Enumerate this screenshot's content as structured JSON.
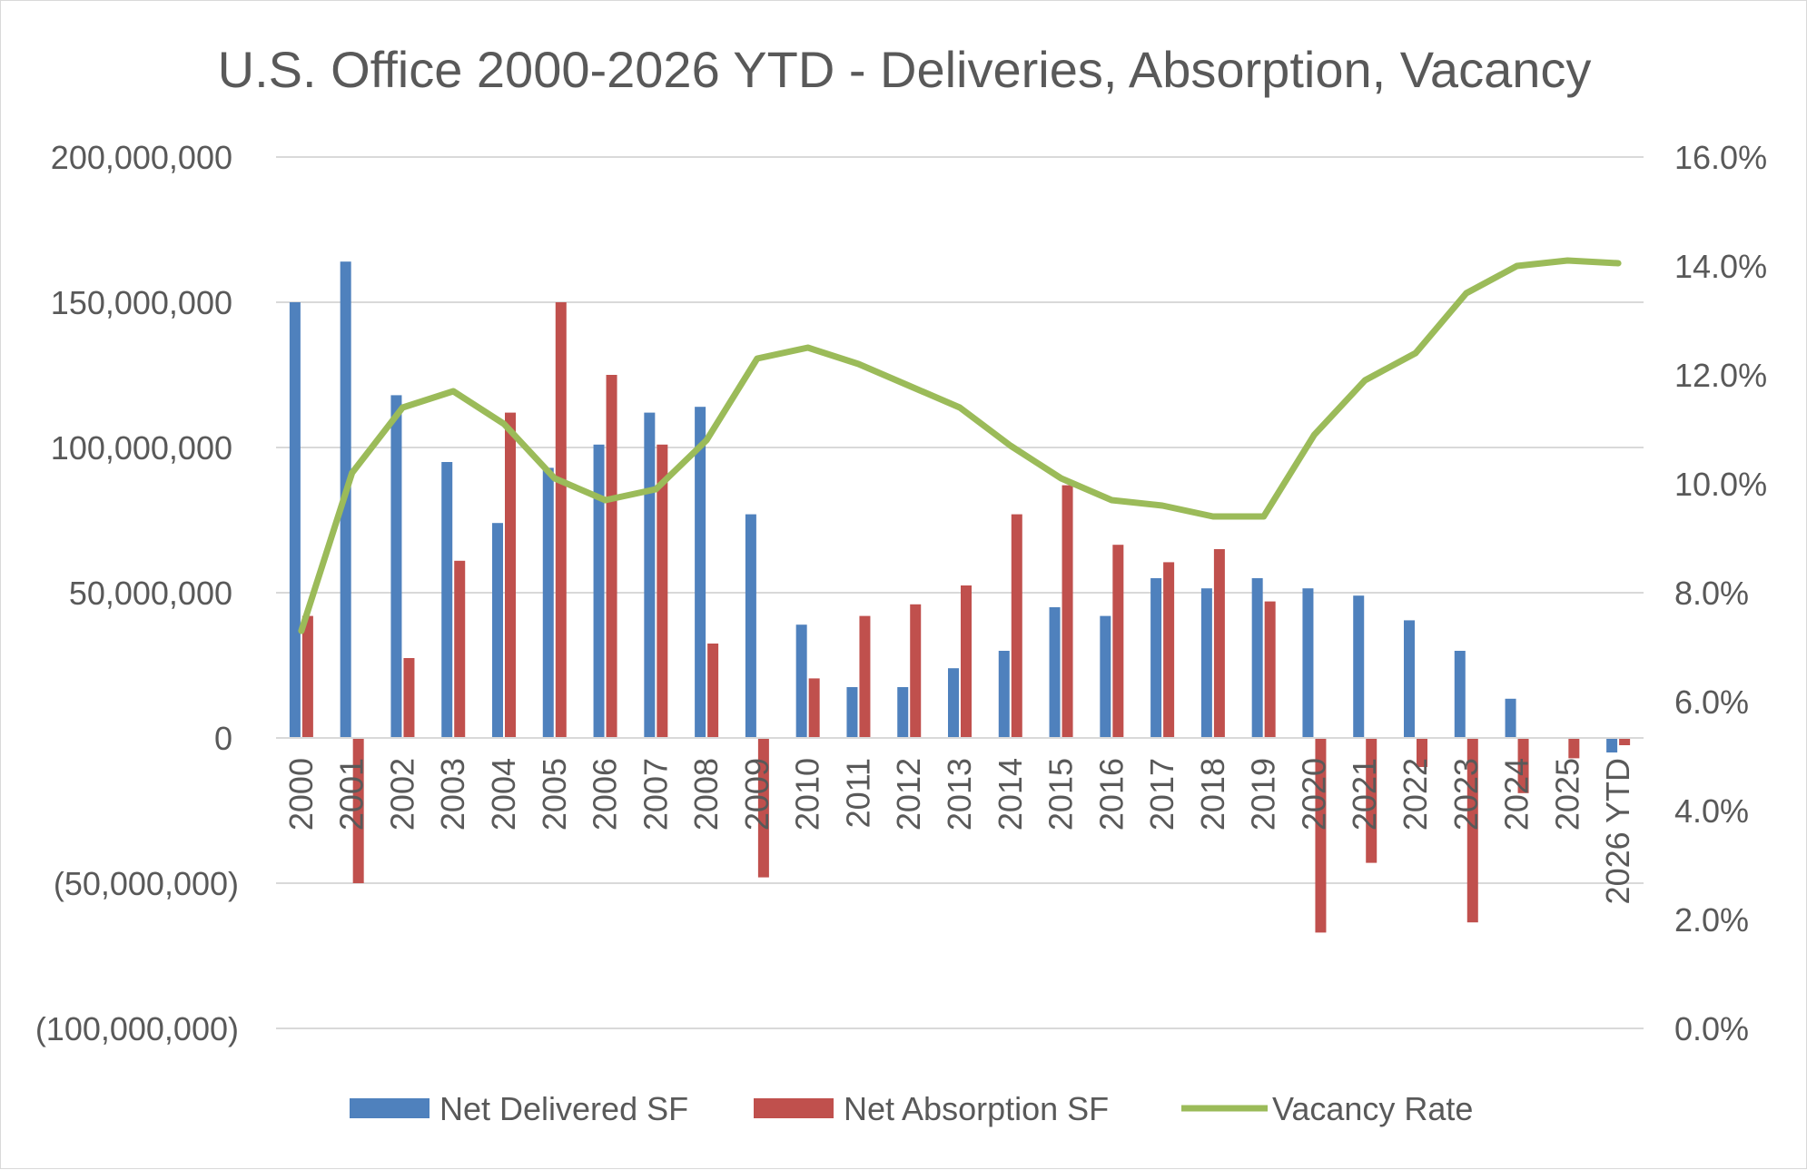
{
  "chart_data": {
    "type": "bar",
    "title": "U.S. Office 2000-2026 YTD - Deliveries, Absorption, Vacancy",
    "categories": [
      "2000",
      "2001",
      "2002",
      "2003",
      "2004",
      "2005",
      "2006",
      "2007",
      "2008",
      "2009",
      "2010",
      "2011",
      "2012",
      "2013",
      "2014",
      "2015",
      "2016",
      "2017",
      "2018",
      "2019",
      "2020",
      "2021",
      "2022",
      "2023",
      "2024",
      "2025",
      "2026 YTD"
    ],
    "series": [
      {
        "name": "Net Delivered SF",
        "type": "bar",
        "axis": "left",
        "color": "#4F81BD",
        "values": [
          150000000,
          164000000,
          118000000,
          95000000,
          74000000,
          93000000,
          101000000,
          112000000,
          114000000,
          77000000,
          39000000,
          17500000,
          17500000,
          24000000,
          30000000,
          45000000,
          42000000,
          55000000,
          51500000,
          55000000,
          51500000,
          49000000,
          40500000,
          30000000,
          13500000,
          0,
          -5000000
        ]
      },
      {
        "name": "Net Absorption SF",
        "type": "bar",
        "axis": "left",
        "color": "#C0504D",
        "values": [
          42000000,
          -50000000,
          27500000,
          61000000,
          112000000,
          150000000,
          125000000,
          101000000,
          32500000,
          -48000000,
          20500000,
          42000000,
          46000000,
          52500000,
          77000000,
          87000000,
          66500000,
          60500000,
          65000000,
          47000000,
          -67000000,
          -43000000,
          -10000000,
          -63500000,
          -19000000,
          -7000000,
          -2500000
        ]
      },
      {
        "name": "Vacancy Rate",
        "type": "line",
        "axis": "right",
        "color": "#9BBB59",
        "values": [
          7.3,
          10.2,
          11.4,
          11.7,
          11.1,
          10.1,
          9.7,
          9.9,
          10.8,
          12.3,
          12.5,
          12.2,
          11.8,
          11.4,
          10.7,
          10.1,
          9.7,
          9.6,
          9.4,
          9.4,
          10.9,
          11.9,
          12.4,
          13.5,
          14.0,
          14.1,
          14.05
        ]
      }
    ],
    "y_left": {
      "min": -100000000,
      "max": 200000000,
      "step": 50000000,
      "tick_labels": [
        "(100,000,000)",
        "(50,000,000)",
        "0",
        "50,000,000",
        "100,000,000",
        "150,000,000",
        "200,000,000"
      ],
      "negative_label_color": "#FF0000"
    },
    "y_right": {
      "min": 0,
      "max": 16,
      "step": 2,
      "tick_labels": [
        "0.0%",
        "2.0%",
        "4.0%",
        "6.0%",
        "8.0%",
        "10.0%",
        "12.0%",
        "14.0%",
        "16.0%"
      ]
    },
    "grid": true,
    "legend_position": "bottom"
  },
  "colors": {
    "text": "#595959",
    "gridline": "#d9d9d9",
    "negative_tick": "#FF0000"
  }
}
